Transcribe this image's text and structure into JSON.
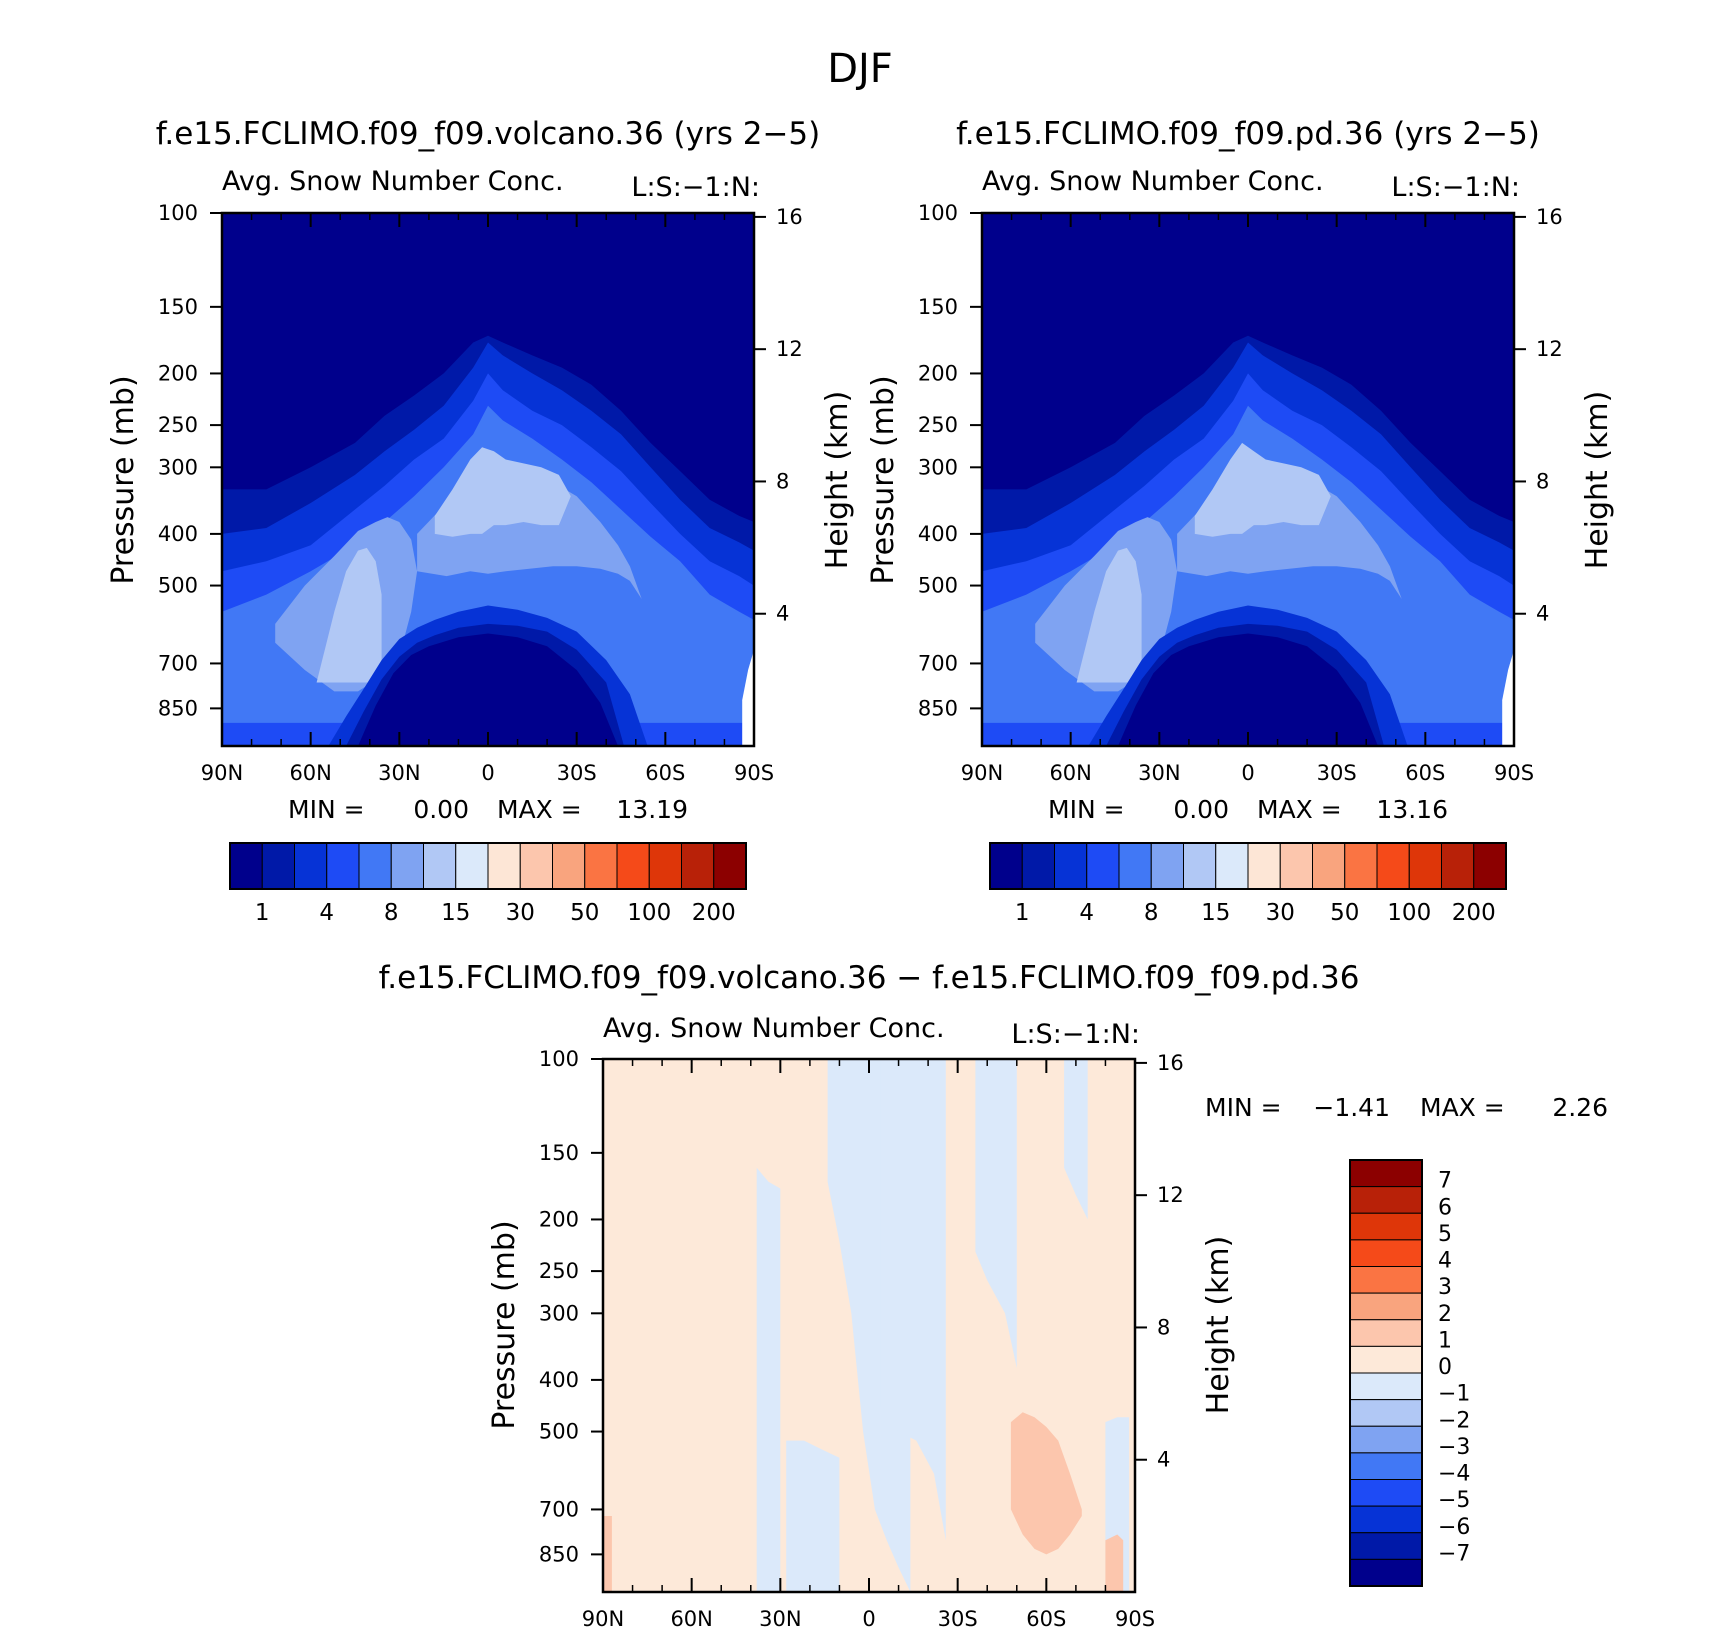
{
  "figure_title": "DJF",
  "colors": {
    "seq": [
      "#00008c",
      "#0019a8",
      "#0633d6",
      "#1e4bf5",
      "#4178f5",
      "#7fa3f2",
      "#b1c8f5",
      "#dbe9fa",
      "#fde6d6",
      "#fcc6ad",
      "#f9a47e",
      "#fa7443",
      "#f54a19",
      "#de3609",
      "#b82108",
      "#8c0000"
    ],
    "diff": [
      "#00008c",
      "#0019a8",
      "#0633d6",
      "#1e4bf5",
      "#4178f5",
      "#7fa3f2",
      "#b1c8f5",
      "#dbe9fa",
      "#fde9d9",
      "#fcc6ad",
      "#f9a47e",
      "#fa7443",
      "#f54a19",
      "#de3609",
      "#b82108",
      "#8c0000"
    ]
  },
  "chart_data": [
    {
      "type": "heatmap",
      "id": "volcano",
      "title": "f.e15.FCLIMO.f09_f09.volcano.36 (yrs 2−5)",
      "subtitle": "Avg. Snow Number Conc.",
      "corner_label": "L:S:−1:N:",
      "ylabel": "Pressure (mb)",
      "ylabel_right": "Height (km)",
      "x_ticks": [
        "90N",
        "60N",
        "30N",
        "0",
        "30S",
        "60S",
        "90S"
      ],
      "y_ticks": [
        100,
        150,
        200,
        250,
        300,
        400,
        500,
        700,
        850
      ],
      "y_right_ticks": [
        16,
        12,
        8,
        4
      ],
      "ylim": [
        100,
        1000
      ],
      "xlim": [
        90,
        -90
      ],
      "stats": {
        "min_label": "MIN =",
        "min": "0.00",
        "max_label": "MAX =",
        "max": "13.19"
      },
      "contour_levels": [
        1,
        2,
        4,
        6,
        8,
        10,
        15,
        20,
        30,
        40,
        50,
        75,
        100,
        150,
        200
      ],
      "colorbar_labels": [
        "1",
        "4",
        "8",
        "15",
        "30",
        "50",
        "100",
        "200"
      ]
    },
    {
      "type": "heatmap",
      "id": "pd",
      "title": "f.e15.FCLIMO.f09_f09.pd.36 (yrs 2−5)",
      "subtitle": "Avg. Snow Number Conc.",
      "corner_label": "L:S:−1:N:",
      "ylabel": "Pressure (mb)",
      "ylabel_right": "Height (km)",
      "x_ticks": [
        "90N",
        "60N",
        "30N",
        "0",
        "30S",
        "60S",
        "90S"
      ],
      "y_ticks": [
        100,
        150,
        200,
        250,
        300,
        400,
        500,
        700,
        850
      ],
      "y_right_ticks": [
        16,
        12,
        8,
        4
      ],
      "ylim": [
        100,
        1000
      ],
      "xlim": [
        90,
        -90
      ],
      "stats": {
        "min_label": "MIN =",
        "min": "0.00",
        "max_label": "MAX =",
        "max": "13.16"
      },
      "contour_levels": [
        1,
        2,
        4,
        6,
        8,
        10,
        15,
        20,
        30,
        40,
        50,
        75,
        100,
        150,
        200
      ],
      "colorbar_labels": [
        "1",
        "4",
        "8",
        "15",
        "30",
        "50",
        "100",
        "200"
      ]
    },
    {
      "type": "heatmap",
      "id": "diff",
      "title": "f.e15.FCLIMO.f09_f09.volcano.36 − f.e15.FCLIMO.f09_f09.pd.36",
      "subtitle": "Avg. Snow Number Conc.",
      "corner_label": "L:S:−1:N:",
      "ylabel": "Pressure (mb)",
      "ylabel_right": "Height (km)",
      "x_ticks": [
        "90N",
        "60N",
        "30N",
        "0",
        "30S",
        "60S",
        "90S"
      ],
      "y_ticks": [
        100,
        150,
        200,
        250,
        300,
        400,
        500,
        700,
        850
      ],
      "y_right_ticks": [
        16,
        12,
        8,
        4
      ],
      "ylim": [
        100,
        1000
      ],
      "xlim": [
        90,
        -90
      ],
      "stats": {
        "min_label": "MIN =",
        "min": "−1.41",
        "max_label": "MAX =",
        "max": "2.26"
      },
      "colorbar_labels": [
        "7",
        "6",
        "5",
        "4",
        "3",
        "2",
        "1",
        "0",
        "−1",
        "−2",
        "−3",
        "−4",
        "−5",
        "−6",
        "−7"
      ]
    }
  ]
}
